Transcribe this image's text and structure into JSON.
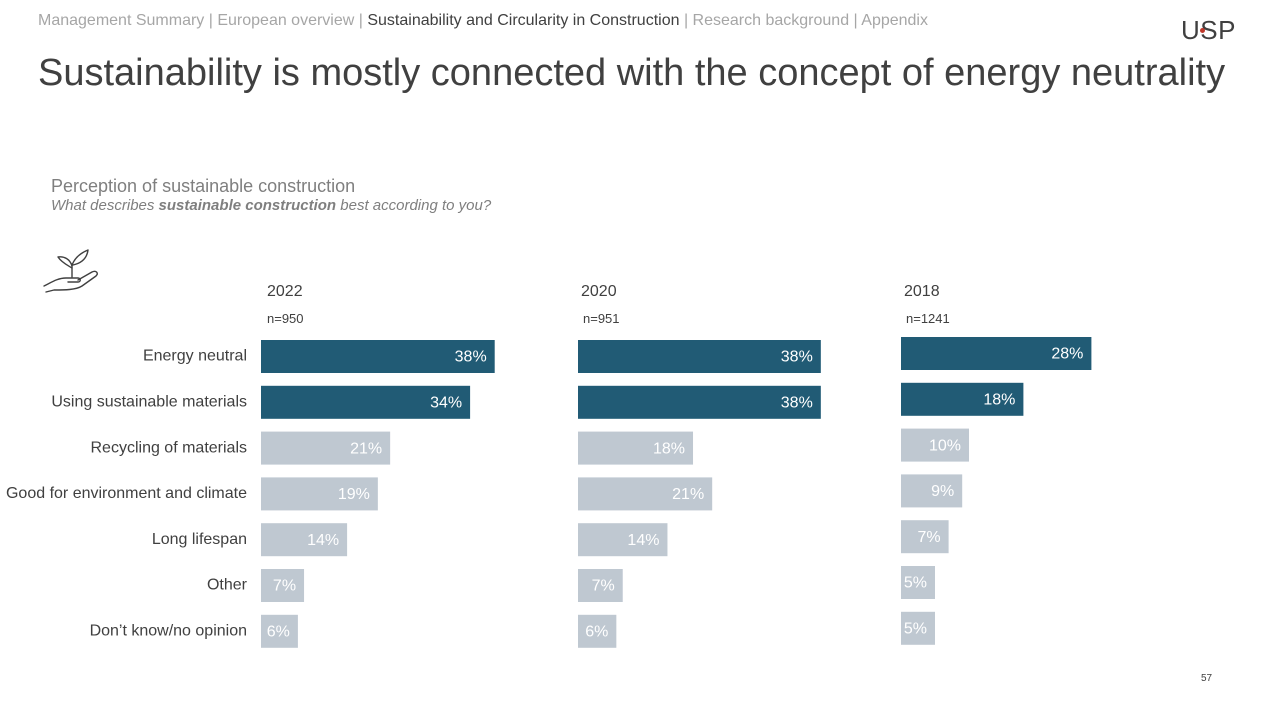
{
  "nav": {
    "items": [
      {
        "label": "Management Summary",
        "active": false
      },
      {
        "label": "European overview",
        "active": false
      },
      {
        "label": "Sustainability and Circularity in Construction",
        "active": true
      },
      {
        "label": "Research background",
        "active": false
      },
      {
        "label": "Appendix",
        "active": false
      }
    ],
    "separator": "|"
  },
  "logo": "USP",
  "page_title": "Sustainability is mostly connected with the concept of energy neutrality",
  "page_number": "57",
  "icon": "plant-in-hand-icon",
  "colors": {
    "highlight": "#215b75",
    "muted": "#bfc8d1",
    "text": "#404040",
    "subtle": "#7f7f7f",
    "accent": "#c0392b"
  },
  "chart_data": {
    "type": "bar",
    "orientation": "horizontal",
    "title": "Perception of sustainable construction",
    "subtitle": {
      "before": "What describes ",
      "bold": "sustainable construction",
      "after": " best according to you?"
    },
    "categories": [
      "Energy neutral",
      "Using sustainable materials",
      "Recycling of materials",
      "Good for environment and climate",
      "Long lifespan",
      "Other",
      "Don’t know/no opinion"
    ],
    "highlighted_categories": [
      "Energy neutral",
      "Using sustainable materials"
    ],
    "series": [
      {
        "name": "2022",
        "n": "n=950",
        "values": [
          38,
          34,
          21,
          19,
          14,
          7,
          6
        ]
      },
      {
        "name": "2020",
        "n": "n=951",
        "values": [
          38,
          38,
          18,
          21,
          14,
          7,
          6
        ]
      },
      {
        "name": "2018",
        "n": "n=1241",
        "values": [
          28,
          18,
          10,
          9,
          7,
          5,
          5
        ]
      }
    ],
    "value_suffix": "%",
    "grid": false,
    "legend": "none"
  }
}
